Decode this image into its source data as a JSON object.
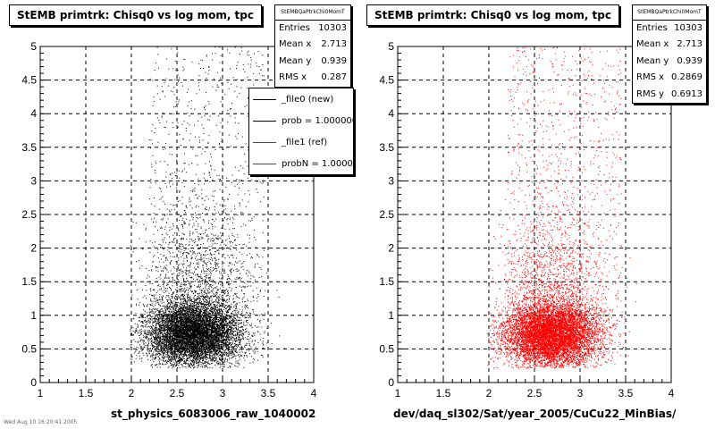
{
  "chart_data": [
    {
      "type": "scatter",
      "title": "StEMB primtrk: Chisq0 vs log mom, tpc",
      "xlabel": "st_physics_6083006_raw_1040002",
      "ylabel": "",
      "xlim": [
        1,
        4
      ],
      "ylim": [
        0,
        5
      ],
      "xticks": [
        "1",
        "1.5",
        "2",
        "2.5",
        "3",
        "3.5",
        "4"
      ],
      "yticks": [
        "0",
        "0.5",
        "1",
        "1.5",
        "2",
        "2.5",
        "3",
        "3.5",
        "4",
        "4.5",
        "5"
      ],
      "grid": true,
      "marker_color": "#000000",
      "stats": {
        "name": "StEMBQaPtrkChi0MomT",
        "rows": [
          {
            "label": "Entries",
            "value": "10303"
          },
          {
            "label": "Mean x",
            "value": "2.713"
          },
          {
            "label": "Mean y",
            "value": "0.939"
          },
          {
            "label": "RMS x",
            "value": "0.287"
          }
        ]
      },
      "legend": {
        "placement": "top-right",
        "entries": [
          {
            "label": "_file0 (new)",
            "color": "#000000"
          },
          {
            "label": "prob = 1.000000",
            "color": "#000000"
          },
          {
            "label": "_file1 (ref)",
            "color": "#ff0000"
          },
          {
            "label": "probN = 1.000000",
            "color": "#ff0000"
          }
        ]
      },
      "distribution": {
        "entries": 10303,
        "mean_x": 2.713,
        "mean_y": 0.939,
        "rms_x": 0.287,
        "rms_y": 0.6913
      }
    },
    {
      "type": "scatter",
      "title": "StEMB primtrk: Chisq0 vs log mom, tpc",
      "xlabel": "dev/daq_sl302/Sat/year_2005/CuCu22_MinBias/",
      "ylabel": "",
      "xlim": [
        1,
        4
      ],
      "ylim": [
        0,
        5
      ],
      "xticks": [
        "1",
        "1.5",
        "2",
        "2.5",
        "3",
        "3.5",
        "4"
      ],
      "yticks": [
        "0",
        "0.5",
        "1",
        "1.5",
        "2",
        "2.5",
        "3",
        "3.5",
        "4",
        "4.5",
        "5"
      ],
      "grid": true,
      "marker_color": "#ff0000",
      "stats": {
        "name": "StEMBQaPtrkChi0MomT",
        "rows": [
          {
            "label": "Entries",
            "value": "10303"
          },
          {
            "label": "Mean x",
            "value": "2.713"
          },
          {
            "label": "Mean y",
            "value": "0.939"
          },
          {
            "label": "RMS x",
            "value": "0.2869"
          },
          {
            "label": "RMS y",
            "value": "0.6913"
          }
        ]
      },
      "distribution": {
        "entries": 10303,
        "mean_x": 2.713,
        "mean_y": 0.939,
        "rms_x": 0.2869,
        "rms_y": 0.6913
      }
    }
  ],
  "footer_text": "Wed Aug 10 16:20:41 2005"
}
